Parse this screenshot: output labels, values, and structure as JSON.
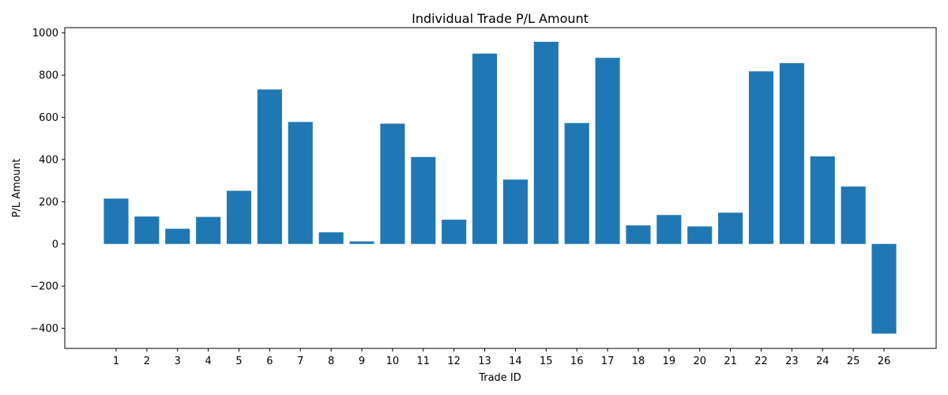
{
  "chart_data": {
    "type": "bar",
    "title": "Individual Trade P/L Amount",
    "xlabel": "Trade ID",
    "ylabel": "P/L Amount",
    "categories": [
      "1",
      "2",
      "3",
      "4",
      "5",
      "6",
      "7",
      "8",
      "9",
      "10",
      "11",
      "12",
      "13",
      "14",
      "15",
      "16",
      "17",
      "18",
      "19",
      "20",
      "21",
      "22",
      "23",
      "24",
      "25",
      "26"
    ],
    "values": [
      215,
      130,
      72,
      128,
      252,
      732,
      578,
      55,
      12,
      570,
      412,
      115,
      902,
      305,
      958,
      573,
      882,
      88,
      137,
      83,
      148,
      818,
      857,
      415,
      272,
      -425
    ],
    "ylim": [
      -495,
      1025
    ],
    "yticks": [
      -400,
      -200,
      0,
      200,
      400,
      600,
      800,
      1000
    ],
    "ytick_labels": [
      "−400",
      "−200",
      "0",
      "200",
      "400",
      "600",
      "800",
      "1000"
    ],
    "bar_color": "#1f77b4",
    "grid": false,
    "legend": "none"
  }
}
